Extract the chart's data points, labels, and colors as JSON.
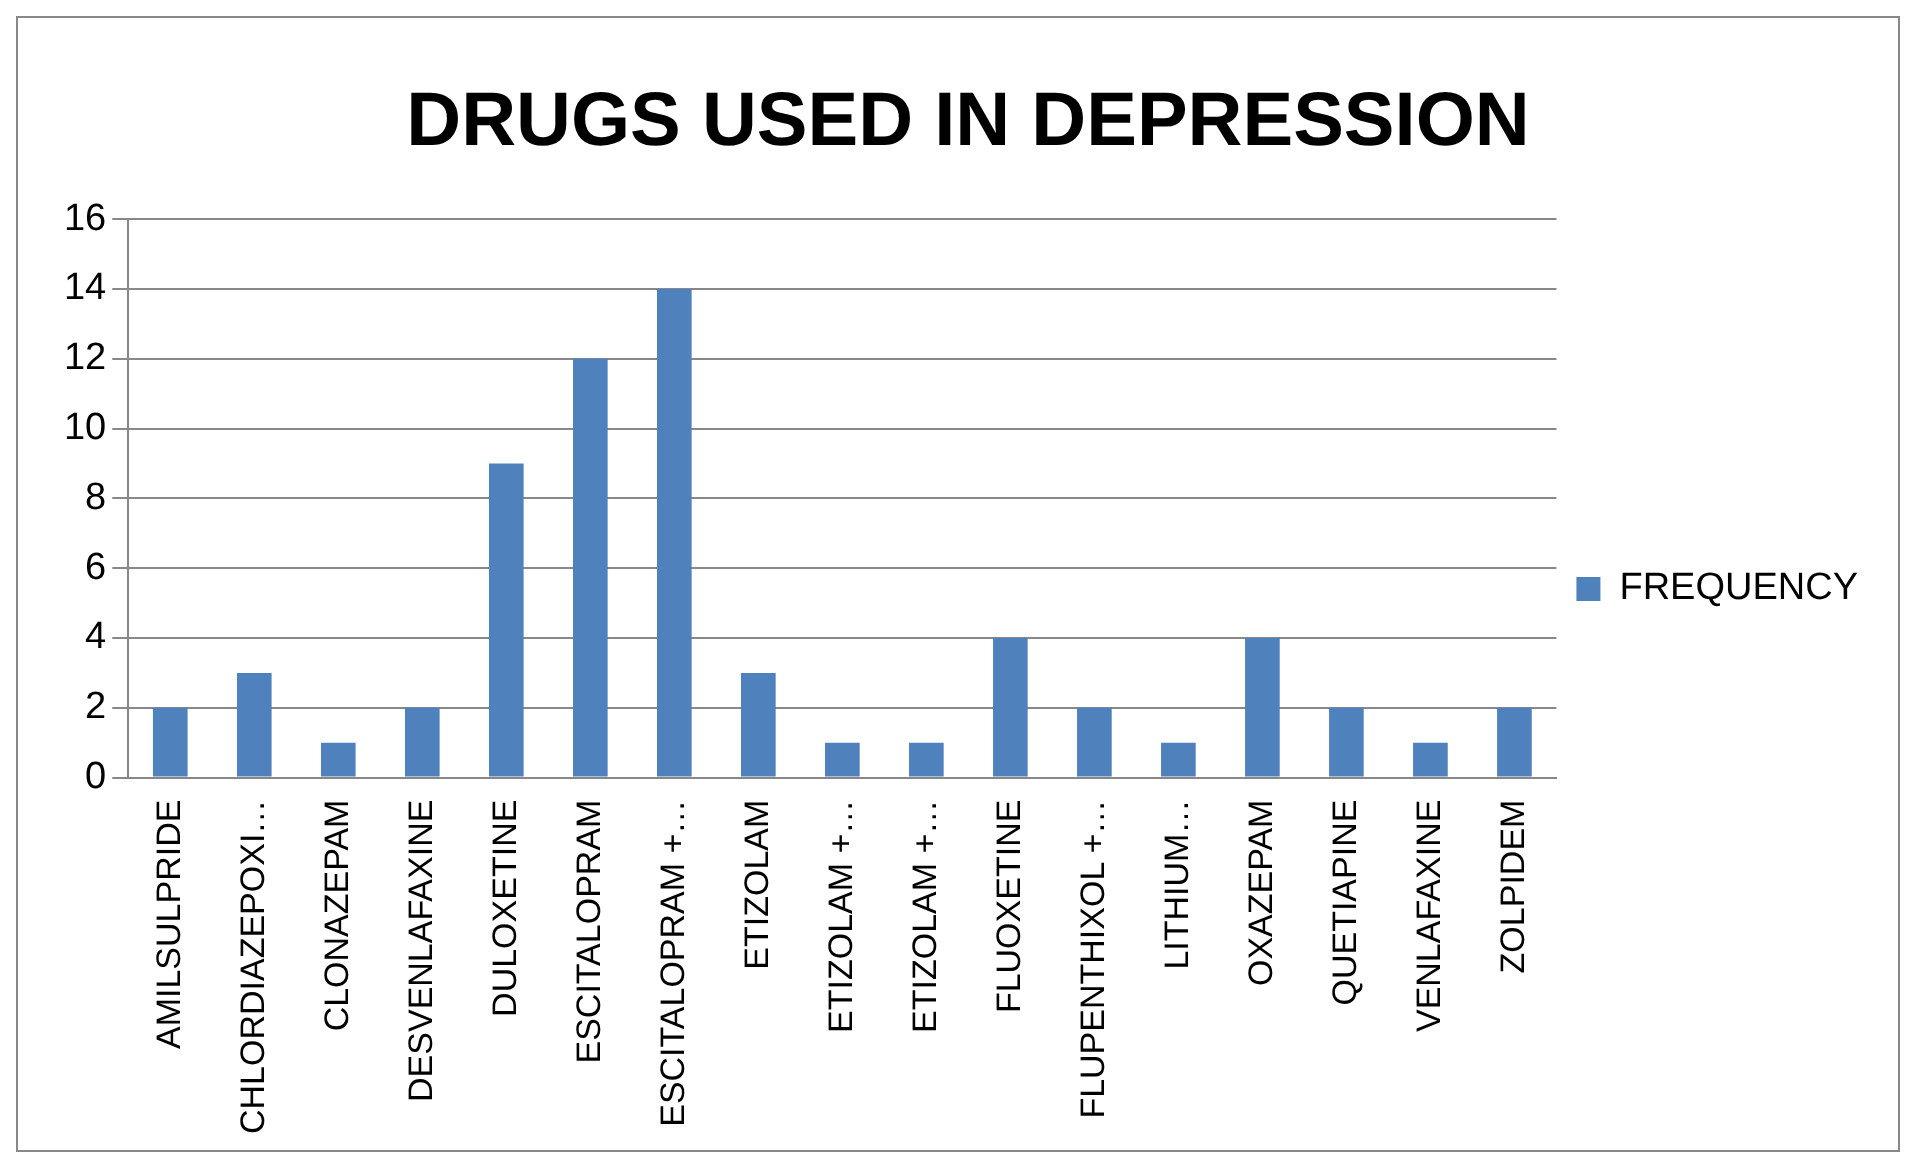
{
  "chart_data": {
    "type": "bar",
    "title": "DRUGS USED IN DEPRESSION",
    "categories": [
      "AMILSULPRIDE",
      "CHLORDIAZEPOXI…",
      "CLONAZEPAM",
      "DESVENLAFAXINE",
      "DULOXETINE",
      "ESCITALOPRAM",
      "ESCITALOPRAM +…",
      "ETIZOLAM",
      "ETIZOLAM +…",
      "ETIZOLAM +…",
      "FLUOXETINE",
      "FLUPENTHIXOL +…",
      "LITHIUM…",
      "OXAZEPAM",
      "QUETIAPINE",
      "VENLAFAXINE",
      "ZOLPIDEM"
    ],
    "series": [
      {
        "name": "FREQUENCY",
        "color": "#4f81bd",
        "values": [
          2,
          3,
          1,
          2,
          9,
          12,
          14,
          3,
          1,
          1,
          4,
          2,
          1,
          4,
          2,
          1,
          2
        ]
      }
    ],
    "ylim": [
      0,
      16
    ],
    "yticks": [
      0,
      2,
      4,
      6,
      8,
      10,
      12,
      14,
      16
    ],
    "grid": "y",
    "legend": "right"
  }
}
